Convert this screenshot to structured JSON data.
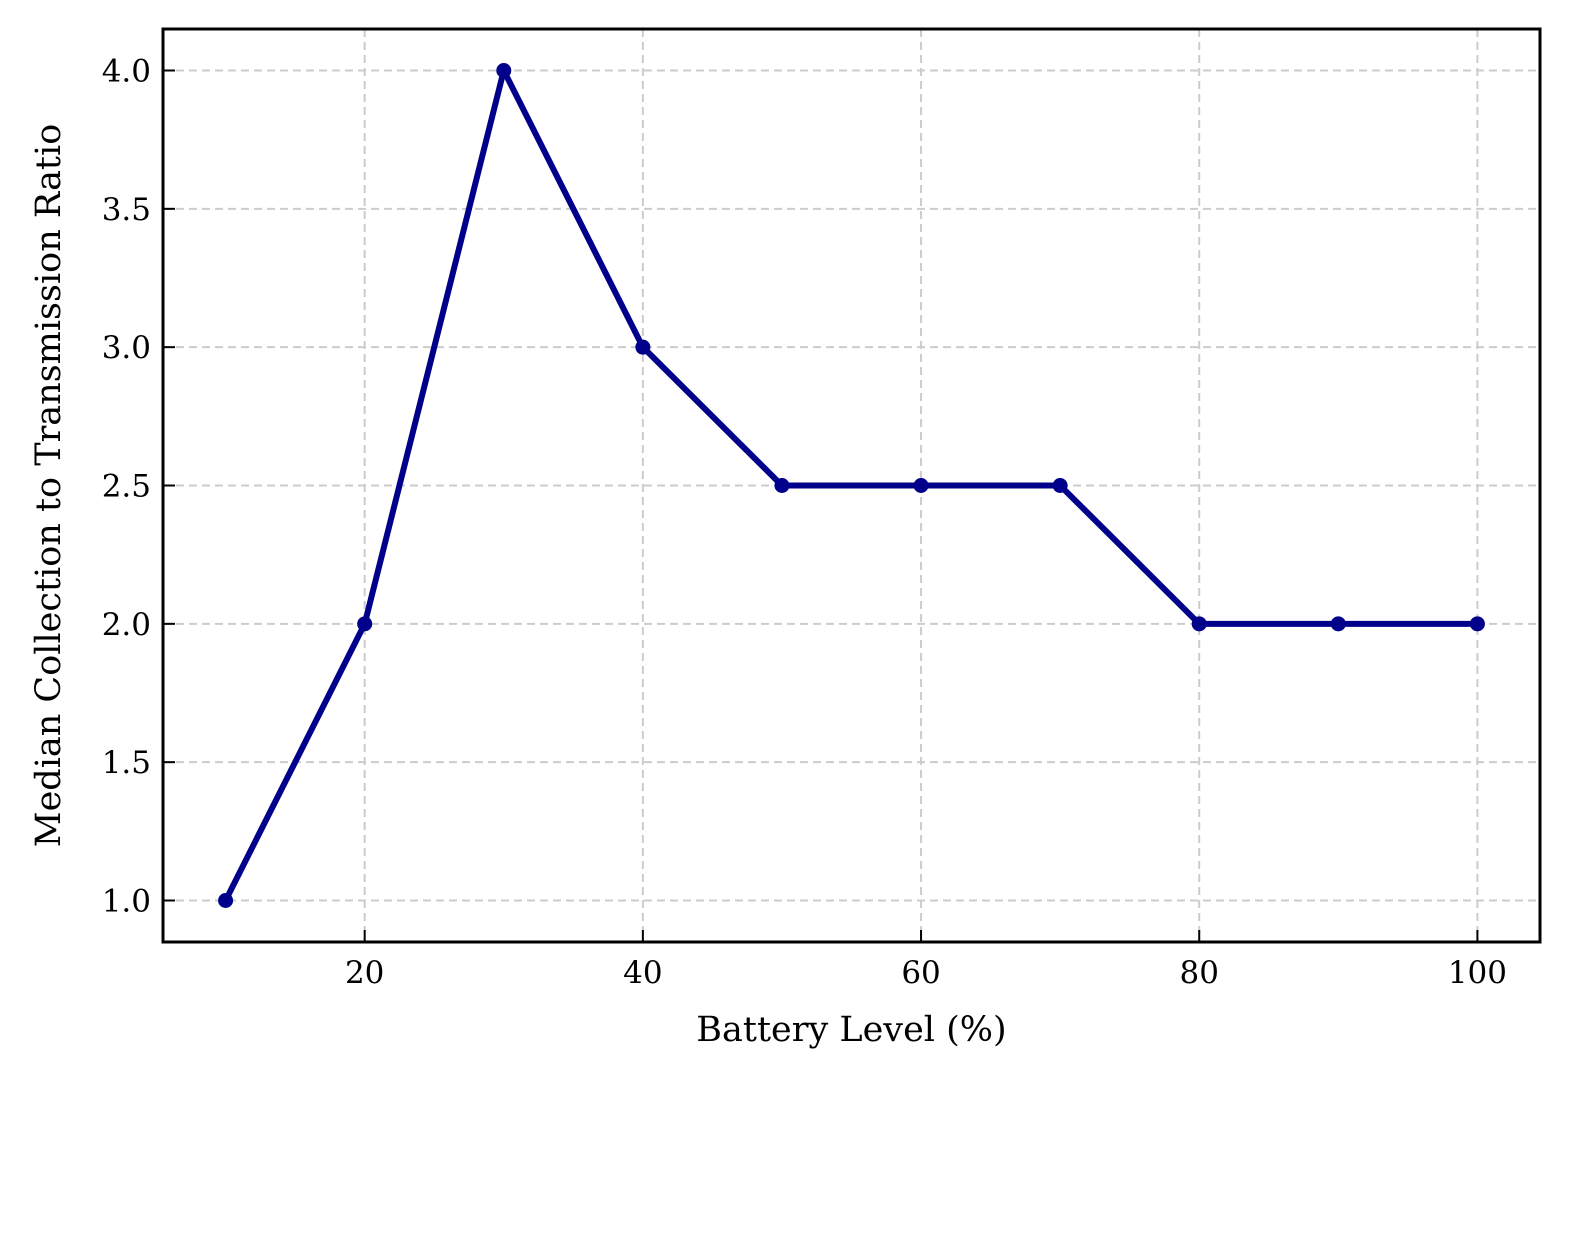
{
  "chart_data": {
    "type": "line",
    "title": "",
    "xlabel": "Battery Level (%)",
    "ylabel": "Median Collection to Transmission Ratio",
    "xlim": [
      5.5,
      104.5
    ],
    "ylim": [
      0.85,
      4.15
    ],
    "xticks": [
      20,
      40,
      60,
      80,
      100
    ],
    "yticks": [
      1.0,
      1.5,
      2.0,
      2.5,
      3.0,
      3.5,
      4.0
    ],
    "xtick_labels": [
      "20",
      "40",
      "60",
      "80",
      "100"
    ],
    "ytick_labels": [
      "1.0",
      "1.5",
      "2.0",
      "2.5",
      "3.0",
      "3.5",
      "4.0"
    ],
    "grid": true,
    "series": [
      {
        "x": [
          10,
          20,
          30,
          40,
          50,
          60,
          70,
          80,
          90,
          100
        ],
        "y": [
          1.0,
          2.0,
          4.0,
          3.0,
          2.5,
          2.5,
          2.5,
          2.0,
          2.0,
          2.0
        ],
        "color": "#00008b",
        "marker": "circle"
      }
    ]
  }
}
